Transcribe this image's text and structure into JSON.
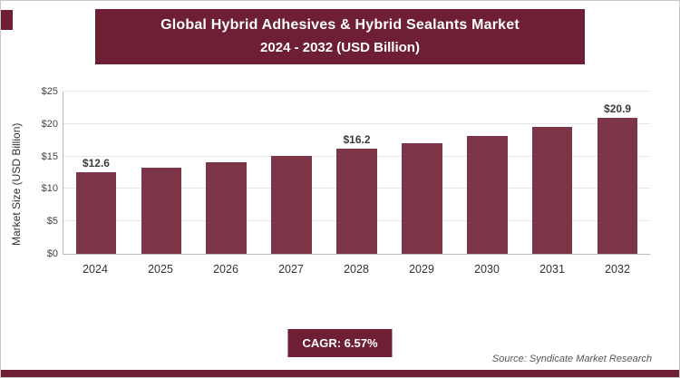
{
  "colors": {
    "accent": "#6e1f33",
    "bar": "#7c3648"
  },
  "header": {
    "title_line1": "Global Hybrid Adhesives & Hybrid Sealants Market",
    "title_line2": "2024 - 2032 (USD Billion)"
  },
  "chart_data": {
    "type": "bar",
    "title": "Global Hybrid Adhesives & Hybrid Sealants Market 2024 - 2032 (USD Billion)",
    "categories": [
      "2024",
      "2025",
      "2026",
      "2027",
      "2028",
      "2029",
      "2030",
      "2031",
      "2032"
    ],
    "values": [
      12.6,
      13.3,
      14.1,
      15.1,
      16.2,
      17.1,
      18.2,
      19.5,
      20.9
    ],
    "bar_labels": [
      "$12.6",
      "",
      "",
      "",
      "$16.2",
      "",
      "",
      "",
      "$20.9"
    ],
    "xlabel": "",
    "ylabel": "Market Size (USD Billion)",
    "ylim": [
      0,
      25
    ],
    "ytick_step": 5,
    "ytick_labels": [
      "$0",
      "$5",
      "$10",
      "$15",
      "$20",
      "$25"
    ],
    "grid": true,
    "legend": "none",
    "bar_color": "#7c3648"
  },
  "footer": {
    "cagr_label": "CAGR: 6.57%",
    "source": "Source: Syndicate Market Research"
  }
}
